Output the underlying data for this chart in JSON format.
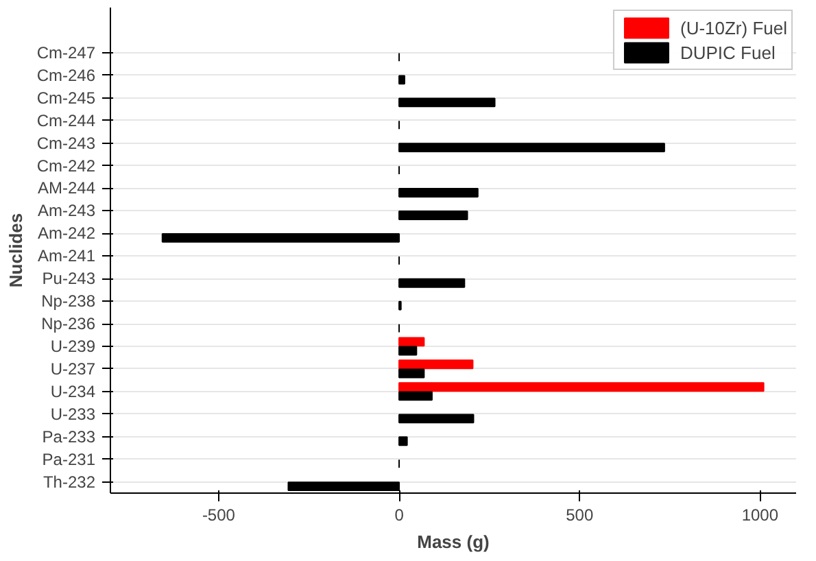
{
  "chart_data": {
    "type": "bar",
    "orientation": "horizontal",
    "xlabel": "Mass (g)",
    "ylabel": "Nuclides",
    "categories": [
      "Cm-247",
      "Cm-246",
      "Cm-245",
      "Cm-244",
      "Cm-243",
      "Cm-242",
      "AM-244",
      "Am-243",
      "Am-242",
      "Am-241",
      "Pu-243",
      "Np-238",
      "Np-236",
      "U-239",
      "U-237",
      "U-234",
      "U-233",
      "Pa-233",
      "Pa-231",
      "Th-232"
    ],
    "series": [
      {
        "name": "(U-10Zr) Fuel",
        "color": "#ff0000",
        "values": [
          null,
          null,
          null,
          null,
          null,
          null,
          null,
          null,
          null,
          null,
          null,
          null,
          null,
          69,
          204,
          1010,
          null,
          null,
          null,
          null
        ]
      },
      {
        "name": "DUPIC Fuel",
        "color": "#000000",
        "values": [
          0,
          15,
          265,
          0,
          735,
          0,
          218,
          189,
          -656,
          0,
          181,
          5,
          0,
          48,
          69,
          91,
          206,
          22,
          0,
          -307
        ]
      }
    ],
    "xlim": [
      -800,
      1100
    ],
    "xticks": [
      {
        "value": -500,
        "label": "-500"
      },
      0,
      500,
      1000
    ],
    "grid": "y",
    "legend": "top right"
  }
}
